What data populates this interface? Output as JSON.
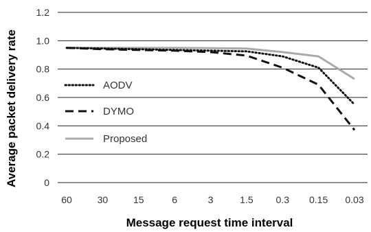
{
  "chart_data": {
    "type": "line",
    "title": "",
    "xlabel": "Message request time interval",
    "ylabel": "Average packet delivery rate",
    "categories": [
      "60",
      "30",
      "15",
      "6",
      "3",
      "1.5",
      "0.3",
      "0.15",
      "0.03"
    ],
    "yticks": [
      "0",
      "0.2",
      "0.4",
      "0.6",
      "0.8",
      "1.0",
      "1.2"
    ],
    "ylim": [
      0,
      1.2
    ],
    "grid": "horizontal",
    "legend_position": "left",
    "series": [
      {
        "name": "AODV",
        "style": "dotted",
        "color": "#111111",
        "values": [
          0.95,
          0.945,
          0.94,
          0.935,
          0.93,
          0.925,
          0.89,
          0.81,
          0.55
        ]
      },
      {
        "name": "DYMO",
        "style": "dashed",
        "color": "#111111",
        "values": [
          0.95,
          0.94,
          0.935,
          0.93,
          0.92,
          0.895,
          0.81,
          0.69,
          0.37
        ]
      },
      {
        "name": "Proposed",
        "style": "solid",
        "color": "#aaaaaa",
        "values": [
          0.95,
          0.95,
          0.95,
          0.95,
          0.948,
          0.945,
          0.92,
          0.89,
          0.73
        ]
      }
    ]
  }
}
